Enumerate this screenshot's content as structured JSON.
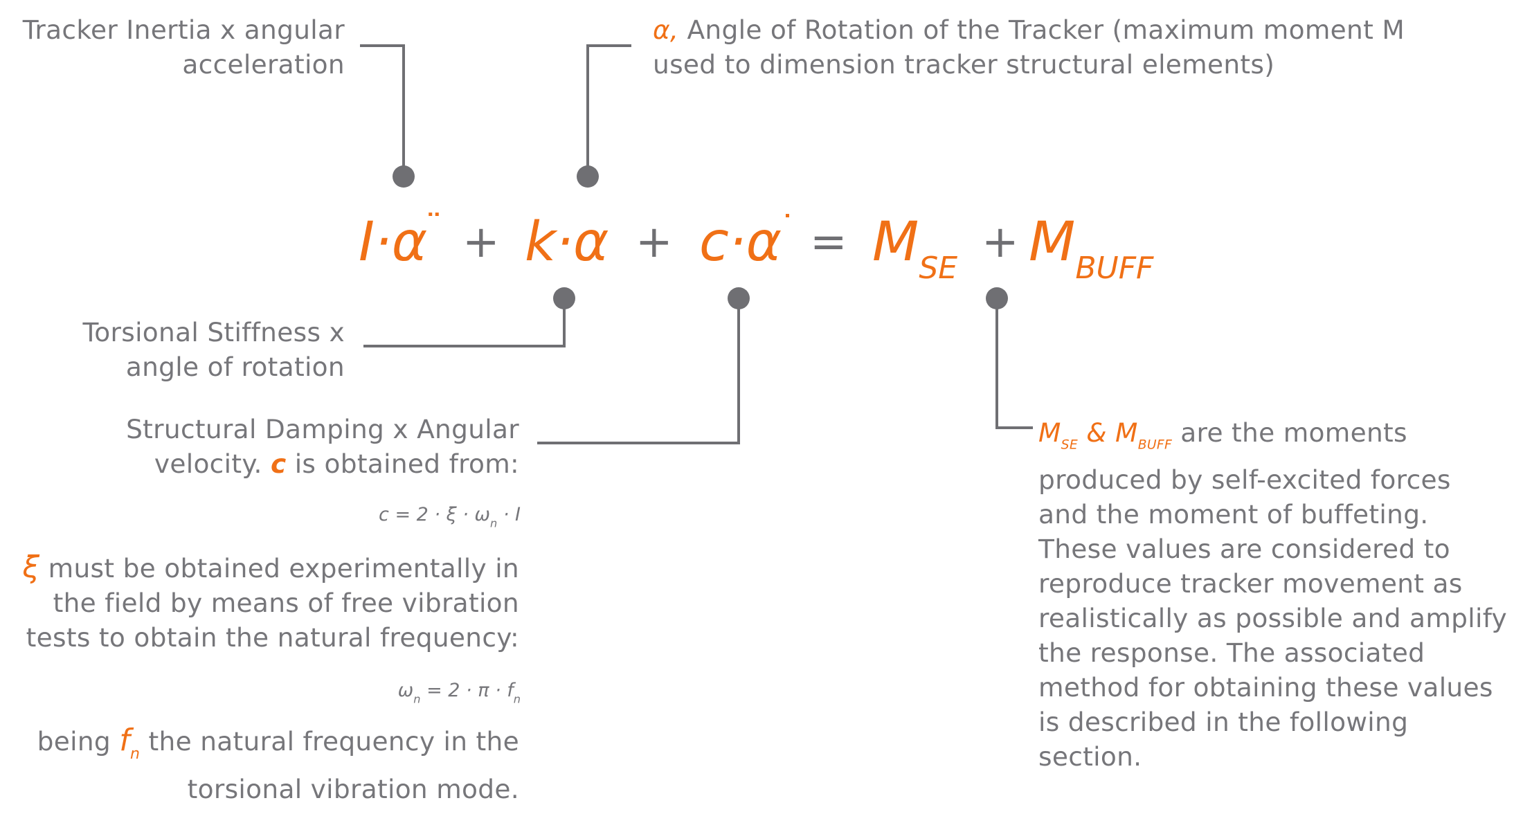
{
  "labels": {
    "inertia_l1": "Tracker Inertia x angular",
    "inertia_l2": "acceleration",
    "alpha_symbol": "α,",
    "alpha_l1": "Angle of Rotation of the Tracker (maximum moment M",
    "alpha_l2": "used to dimension tracker structural elements)",
    "stiffness_l1": "Torsional Stiffness x",
    "stiffness_l2": "angle of rotation",
    "damping_l1": "Structural Damping x Angular",
    "damping_l2a": "velocity.",
    "damping_c": "c",
    "damping_l2b": "is obtained from:",
    "c_formula_pre": "c = 2 · ξ · ω",
    "c_formula_sub": "n",
    "c_formula_post": "· I",
    "xi_symbol": "ξ",
    "xi_l1": "must be obtained experimentally in",
    "xi_l2": "the field by means of free vibration",
    "xi_l3": "tests to obtain the natural frequency:",
    "w_formula_pre": "ω",
    "w_formula_sub1": "n",
    "w_formula_mid": "= 2 · π · f",
    "w_formula_sub2": "n",
    "being_pre": "being",
    "being_f": "f",
    "being_sub": "n",
    "being_post": "the natural frequency in the",
    "being_l2": "torsional vibration mode.",
    "m_se": "M",
    "m_se_sub": "SE",
    "m_amp": "&",
    "m_buff": "M",
    "m_buff_sub": "BUFF",
    "m_desc_l1": "are the moments",
    "m_desc_l2": "produced by self-excited forces",
    "m_desc_l3": "and the moment of buffeting.",
    "m_desc_l4": "These values are considered to",
    "m_desc_l5": "reproduce tracker movement as",
    "m_desc_l6": "realistically as possible and amplify",
    "m_desc_l7": "the response. The associated",
    "m_desc_l8": "method for obtaining these values",
    "m_desc_l9": "is described in the following",
    "m_desc_l10": "section."
  },
  "equation": {
    "t1": "I·α",
    "t1_dots": "¨",
    "plus1": "+",
    "t2": "k·α",
    "plus2": "+",
    "t3": "c·α",
    "t3_dot": "˙",
    "equals": "=",
    "t4": "M",
    "t4_sub": "SE",
    "plus3": "+",
    "t5": "M",
    "t5_sub": "BUFF"
  },
  "colors": {
    "accent": "#f07016",
    "text": "#76767a",
    "line": "#6f6f73"
  }
}
